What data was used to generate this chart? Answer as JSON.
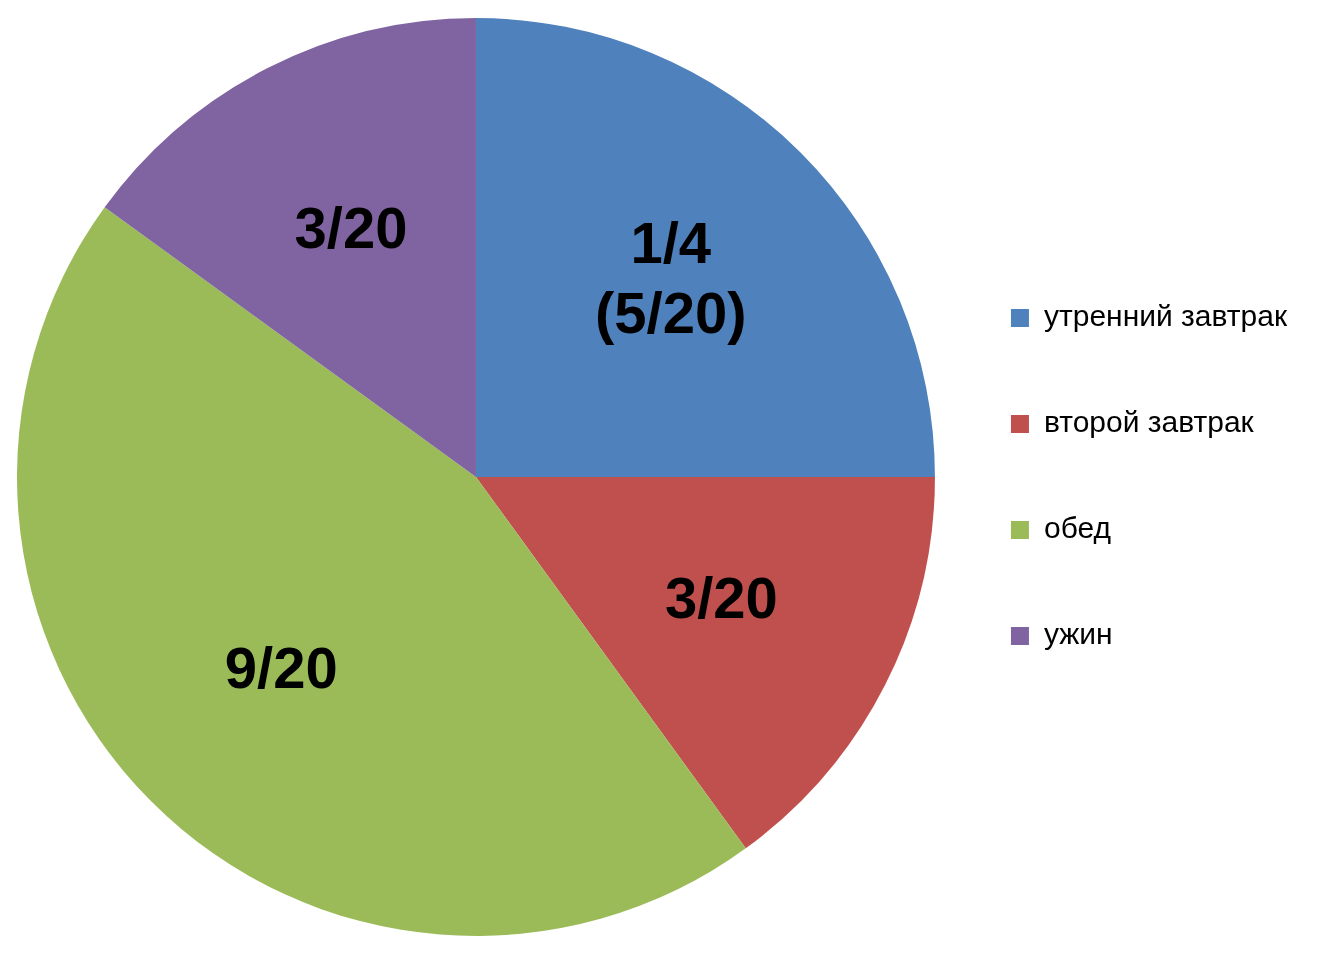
{
  "chart_data": {
    "type": "pie",
    "categories": [
      "утренний завтрак",
      "второй завтрак",
      "обед",
      "ужин"
    ],
    "values": [
      25,
      15,
      45,
      15
    ],
    "colors": [
      "#4f81bd",
      "#c0504d",
      "#9bbb59",
      "#8064a2"
    ],
    "value_labels": [
      "1/4\n(5/20)",
      "3/20",
      "9/20",
      "3/20"
    ],
    "legend": "right"
  }
}
